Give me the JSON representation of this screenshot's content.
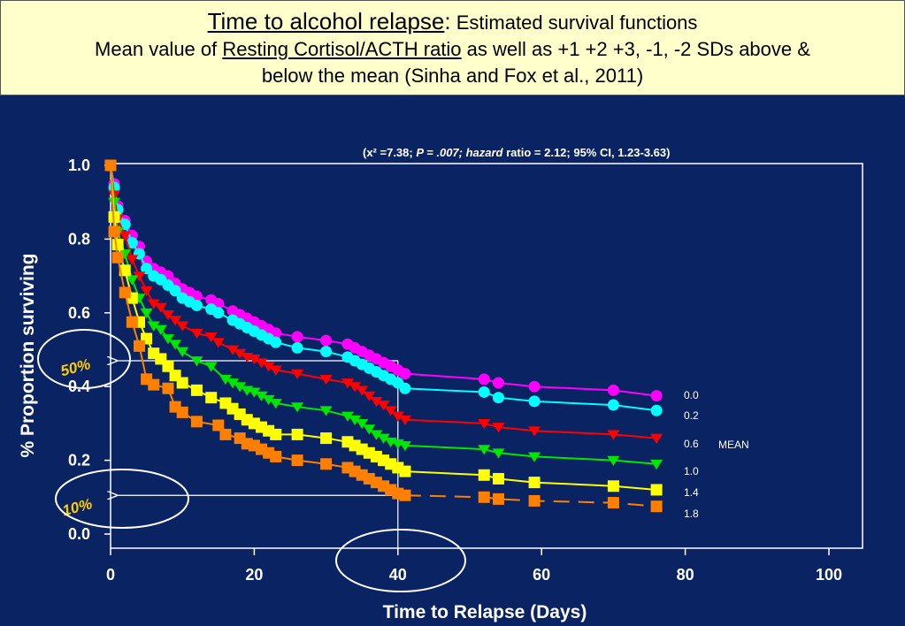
{
  "title": {
    "main": "Time to alcohol relapse",
    "colon": ":",
    "sub": " Estimated survival functions",
    "line2_pre": "Mean value of ",
    "line2_ul": "Resting Cortisol/ACTH ratio",
    "line2_post": " as well as +1 +2 +3, -1, -2 SDs above &",
    "line3": "below the mean (Sinha and Fox et al., 2011)"
  },
  "stats": {
    "part1": "(x² =7.38; ",
    "part2": "P = .007; hazard",
    "part3": " ratio = 2.12; 95% CI, 1.23-3.63)"
  },
  "annotations": {
    "fifty": "50%",
    "ten": "10%",
    "mean_label": "MEAN"
  },
  "chart_data": {
    "type": "line",
    "xlabel": "Time to Relapse (Days)",
    "ylabel": "% Proportion surviving",
    "xlim": [
      0,
      100
    ],
    "ylim": [
      0,
      1.0
    ],
    "x_ticks": [
      "0",
      "20",
      "40",
      "60",
      "80",
      "100"
    ],
    "y_ticks": [
      "0.0",
      "0.2",
      "0.4",
      "0.6",
      "0.8",
      "1.0"
    ],
    "grid": false,
    "legend": "right",
    "series": [
      {
        "name": "0.0",
        "color": "#ff00ff",
        "marker": "circle",
        "points": [
          [
            0,
            1.0
          ],
          [
            0.5,
            0.95
          ],
          [
            1,
            0.89
          ],
          [
            2,
            0.85
          ],
          [
            3,
            0.81
          ],
          [
            4,
            0.78
          ],
          [
            5,
            0.74
          ],
          [
            6,
            0.72
          ],
          [
            7,
            0.71
          ],
          [
            8,
            0.7
          ],
          [
            9,
            0.68
          ],
          [
            10,
            0.665
          ],
          [
            11,
            0.655
          ],
          [
            12,
            0.645
          ],
          [
            14,
            0.635
          ],
          [
            15,
            0.625
          ],
          [
            17,
            0.605
          ],
          [
            18,
            0.595
          ],
          [
            19,
            0.585
          ],
          [
            20,
            0.575
          ],
          [
            21,
            0.565
          ],
          [
            22,
            0.555
          ],
          [
            23,
            0.545
          ],
          [
            26,
            0.535
          ],
          [
            30,
            0.525
          ],
          [
            33,
            0.515
          ],
          [
            34,
            0.505
          ],
          [
            35,
            0.495
          ],
          [
            36,
            0.485
          ],
          [
            37,
            0.475
          ],
          [
            38,
            0.465
          ],
          [
            39,
            0.455
          ],
          [
            40,
            0.445
          ],
          [
            41,
            0.435
          ],
          [
            52,
            0.42
          ],
          [
            54,
            0.41
          ],
          [
            59,
            0.4
          ],
          [
            70,
            0.39
          ],
          [
            76,
            0.375
          ]
        ]
      },
      {
        "name": "0.2",
        "color": "#00ffff",
        "marker": "circle",
        "points": [
          [
            0,
            1.0
          ],
          [
            0.5,
            0.94
          ],
          [
            1,
            0.88
          ],
          [
            2,
            0.84
          ],
          [
            3,
            0.79
          ],
          [
            4,
            0.76
          ],
          [
            5,
            0.72
          ],
          [
            6,
            0.7
          ],
          [
            7,
            0.69
          ],
          [
            8,
            0.675
          ],
          [
            9,
            0.66
          ],
          [
            10,
            0.64
          ],
          [
            11,
            0.63
          ],
          [
            12,
            0.62
          ],
          [
            14,
            0.61
          ],
          [
            15,
            0.6
          ],
          [
            17,
            0.58
          ],
          [
            18,
            0.57
          ],
          [
            19,
            0.56
          ],
          [
            20,
            0.55
          ],
          [
            21,
            0.54
          ],
          [
            22,
            0.53
          ],
          [
            23,
            0.52
          ],
          [
            26,
            0.505
          ],
          [
            30,
            0.495
          ],
          [
            33,
            0.48
          ],
          [
            34,
            0.47
          ],
          [
            35,
            0.46
          ],
          [
            36,
            0.45
          ],
          [
            37,
            0.44
          ],
          [
            38,
            0.43
          ],
          [
            39,
            0.42
          ],
          [
            40,
            0.41
          ],
          [
            41,
            0.395
          ],
          [
            52,
            0.385
          ],
          [
            54,
            0.37
          ],
          [
            59,
            0.36
          ],
          [
            70,
            0.35
          ],
          [
            76,
            0.335
          ]
        ]
      },
      {
        "name": "0.6",
        "color": "#ff0000",
        "marker": "triangle",
        "points": [
          [
            0,
            1.0
          ],
          [
            0.5,
            0.92
          ],
          [
            1,
            0.855
          ],
          [
            2,
            0.81
          ],
          [
            3,
            0.745
          ],
          [
            4,
            0.7
          ],
          [
            5,
            0.66
          ],
          [
            6,
            0.625
          ],
          [
            7,
            0.615
          ],
          [
            8,
            0.595
          ],
          [
            9,
            0.58
          ],
          [
            10,
            0.565
          ],
          [
            12,
            0.545
          ],
          [
            14,
            0.535
          ],
          [
            15,
            0.52
          ],
          [
            17,
            0.5
          ],
          [
            18,
            0.49
          ],
          [
            19,
            0.48
          ],
          [
            20,
            0.475
          ],
          [
            21,
            0.465
          ],
          [
            22,
            0.455
          ],
          [
            23,
            0.445
          ],
          [
            26,
            0.435
          ],
          [
            30,
            0.42
          ],
          [
            33,
            0.41
          ],
          [
            34,
            0.4
          ],
          [
            35,
            0.39
          ],
          [
            36,
            0.375
          ],
          [
            37,
            0.36
          ],
          [
            38,
            0.35
          ],
          [
            39,
            0.335
          ],
          [
            40,
            0.32
          ],
          [
            41,
            0.31
          ],
          [
            52,
            0.3
          ],
          [
            54,
            0.29
          ],
          [
            59,
            0.28
          ],
          [
            70,
            0.27
          ],
          [
            76,
            0.26
          ]
        ]
      },
      {
        "name": "1.0",
        "color": "#00e600",
        "marker": "triangle",
        "points": [
          [
            0,
            1.0
          ],
          [
            0.5,
            0.9
          ],
          [
            1,
            0.82
          ],
          [
            2,
            0.76
          ],
          [
            3,
            0.69
          ],
          [
            4,
            0.64
          ],
          [
            5,
            0.6
          ],
          [
            6,
            0.565
          ],
          [
            7,
            0.555
          ],
          [
            8,
            0.53
          ],
          [
            9,
            0.515
          ],
          [
            10,
            0.495
          ],
          [
            12,
            0.47
          ],
          [
            14,
            0.455
          ],
          [
            16,
            0.42
          ],
          [
            17,
            0.41
          ],
          [
            18,
            0.4
          ],
          [
            19,
            0.39
          ],
          [
            20,
            0.385
          ],
          [
            21,
            0.375
          ],
          [
            22,
            0.365
          ],
          [
            23,
            0.355
          ],
          [
            26,
            0.345
          ],
          [
            30,
            0.335
          ],
          [
            33,
            0.32
          ],
          [
            34,
            0.31
          ],
          [
            35,
            0.3
          ],
          [
            36,
            0.285
          ],
          [
            37,
            0.27
          ],
          [
            38,
            0.26
          ],
          [
            39,
            0.25
          ],
          [
            40,
            0.245
          ],
          [
            41,
            0.24
          ],
          [
            52,
            0.23
          ],
          [
            54,
            0.22
          ],
          [
            59,
            0.21
          ],
          [
            70,
            0.2
          ],
          [
            76,
            0.19
          ]
        ]
      },
      {
        "name": "1.4",
        "color": "#ffff00",
        "marker": "square",
        "points": [
          [
            0,
            1.0
          ],
          [
            0.5,
            0.86
          ],
          [
            1,
            0.785
          ],
          [
            2,
            0.715
          ],
          [
            3,
            0.64
          ],
          [
            4,
            0.575
          ],
          [
            5,
            0.53
          ],
          [
            6,
            0.49
          ],
          [
            7,
            0.475
          ],
          [
            8,
            0.455
          ],
          [
            9,
            0.43
          ],
          [
            10,
            0.41
          ],
          [
            12,
            0.39
          ],
          [
            14,
            0.37
          ],
          [
            16,
            0.355
          ],
          [
            17,
            0.34
          ],
          [
            18,
            0.325
          ],
          [
            19,
            0.31
          ],
          [
            20,
            0.3
          ],
          [
            21,
            0.29
          ],
          [
            22,
            0.28
          ],
          [
            23,
            0.27
          ],
          [
            26,
            0.27
          ],
          [
            30,
            0.26
          ],
          [
            33,
            0.25
          ],
          [
            34,
            0.24
          ],
          [
            35,
            0.23
          ],
          [
            36,
            0.22
          ],
          [
            37,
            0.21
          ],
          [
            38,
            0.2
          ],
          [
            39,
            0.19
          ],
          [
            40,
            0.18
          ],
          [
            41,
            0.17
          ],
          [
            52,
            0.16
          ],
          [
            54,
            0.15
          ],
          [
            59,
            0.14
          ],
          [
            70,
            0.13
          ],
          [
            76,
            0.12
          ]
        ]
      },
      {
        "name": "1.8",
        "color": "#ff7f00",
        "marker": "square",
        "points": [
          [
            0,
            1.0
          ],
          [
            0.5,
            0.82
          ],
          [
            1,
            0.75
          ],
          [
            2,
            0.655
          ],
          [
            3,
            0.575
          ],
          [
            4,
            0.51
          ],
          [
            5,
            0.42
          ],
          [
            6,
            0.405
          ],
          [
            8,
            0.395
          ],
          [
            9,
            0.345
          ],
          [
            10,
            0.33
          ],
          [
            12,
            0.305
          ],
          [
            15,
            0.295
          ],
          [
            16,
            0.27
          ],
          [
            18,
            0.26
          ],
          [
            19,
            0.245
          ],
          [
            20,
            0.24
          ],
          [
            21,
            0.23
          ],
          [
            22,
            0.22
          ],
          [
            23,
            0.21
          ],
          [
            26,
            0.2
          ],
          [
            30,
            0.19
          ],
          [
            33,
            0.18
          ],
          [
            34,
            0.17
          ],
          [
            35,
            0.16
          ],
          [
            36,
            0.15
          ],
          [
            37,
            0.14
          ],
          [
            38,
            0.13
          ],
          [
            39,
            0.12
          ],
          [
            40,
            0.11
          ],
          [
            41,
            0.105
          ],
          [
            52,
            0.1
          ],
          [
            54,
            0.095
          ],
          [
            59,
            0.09
          ],
          [
            70,
            0.085
          ],
          [
            76,
            0.075
          ]
        ]
      }
    ]
  }
}
